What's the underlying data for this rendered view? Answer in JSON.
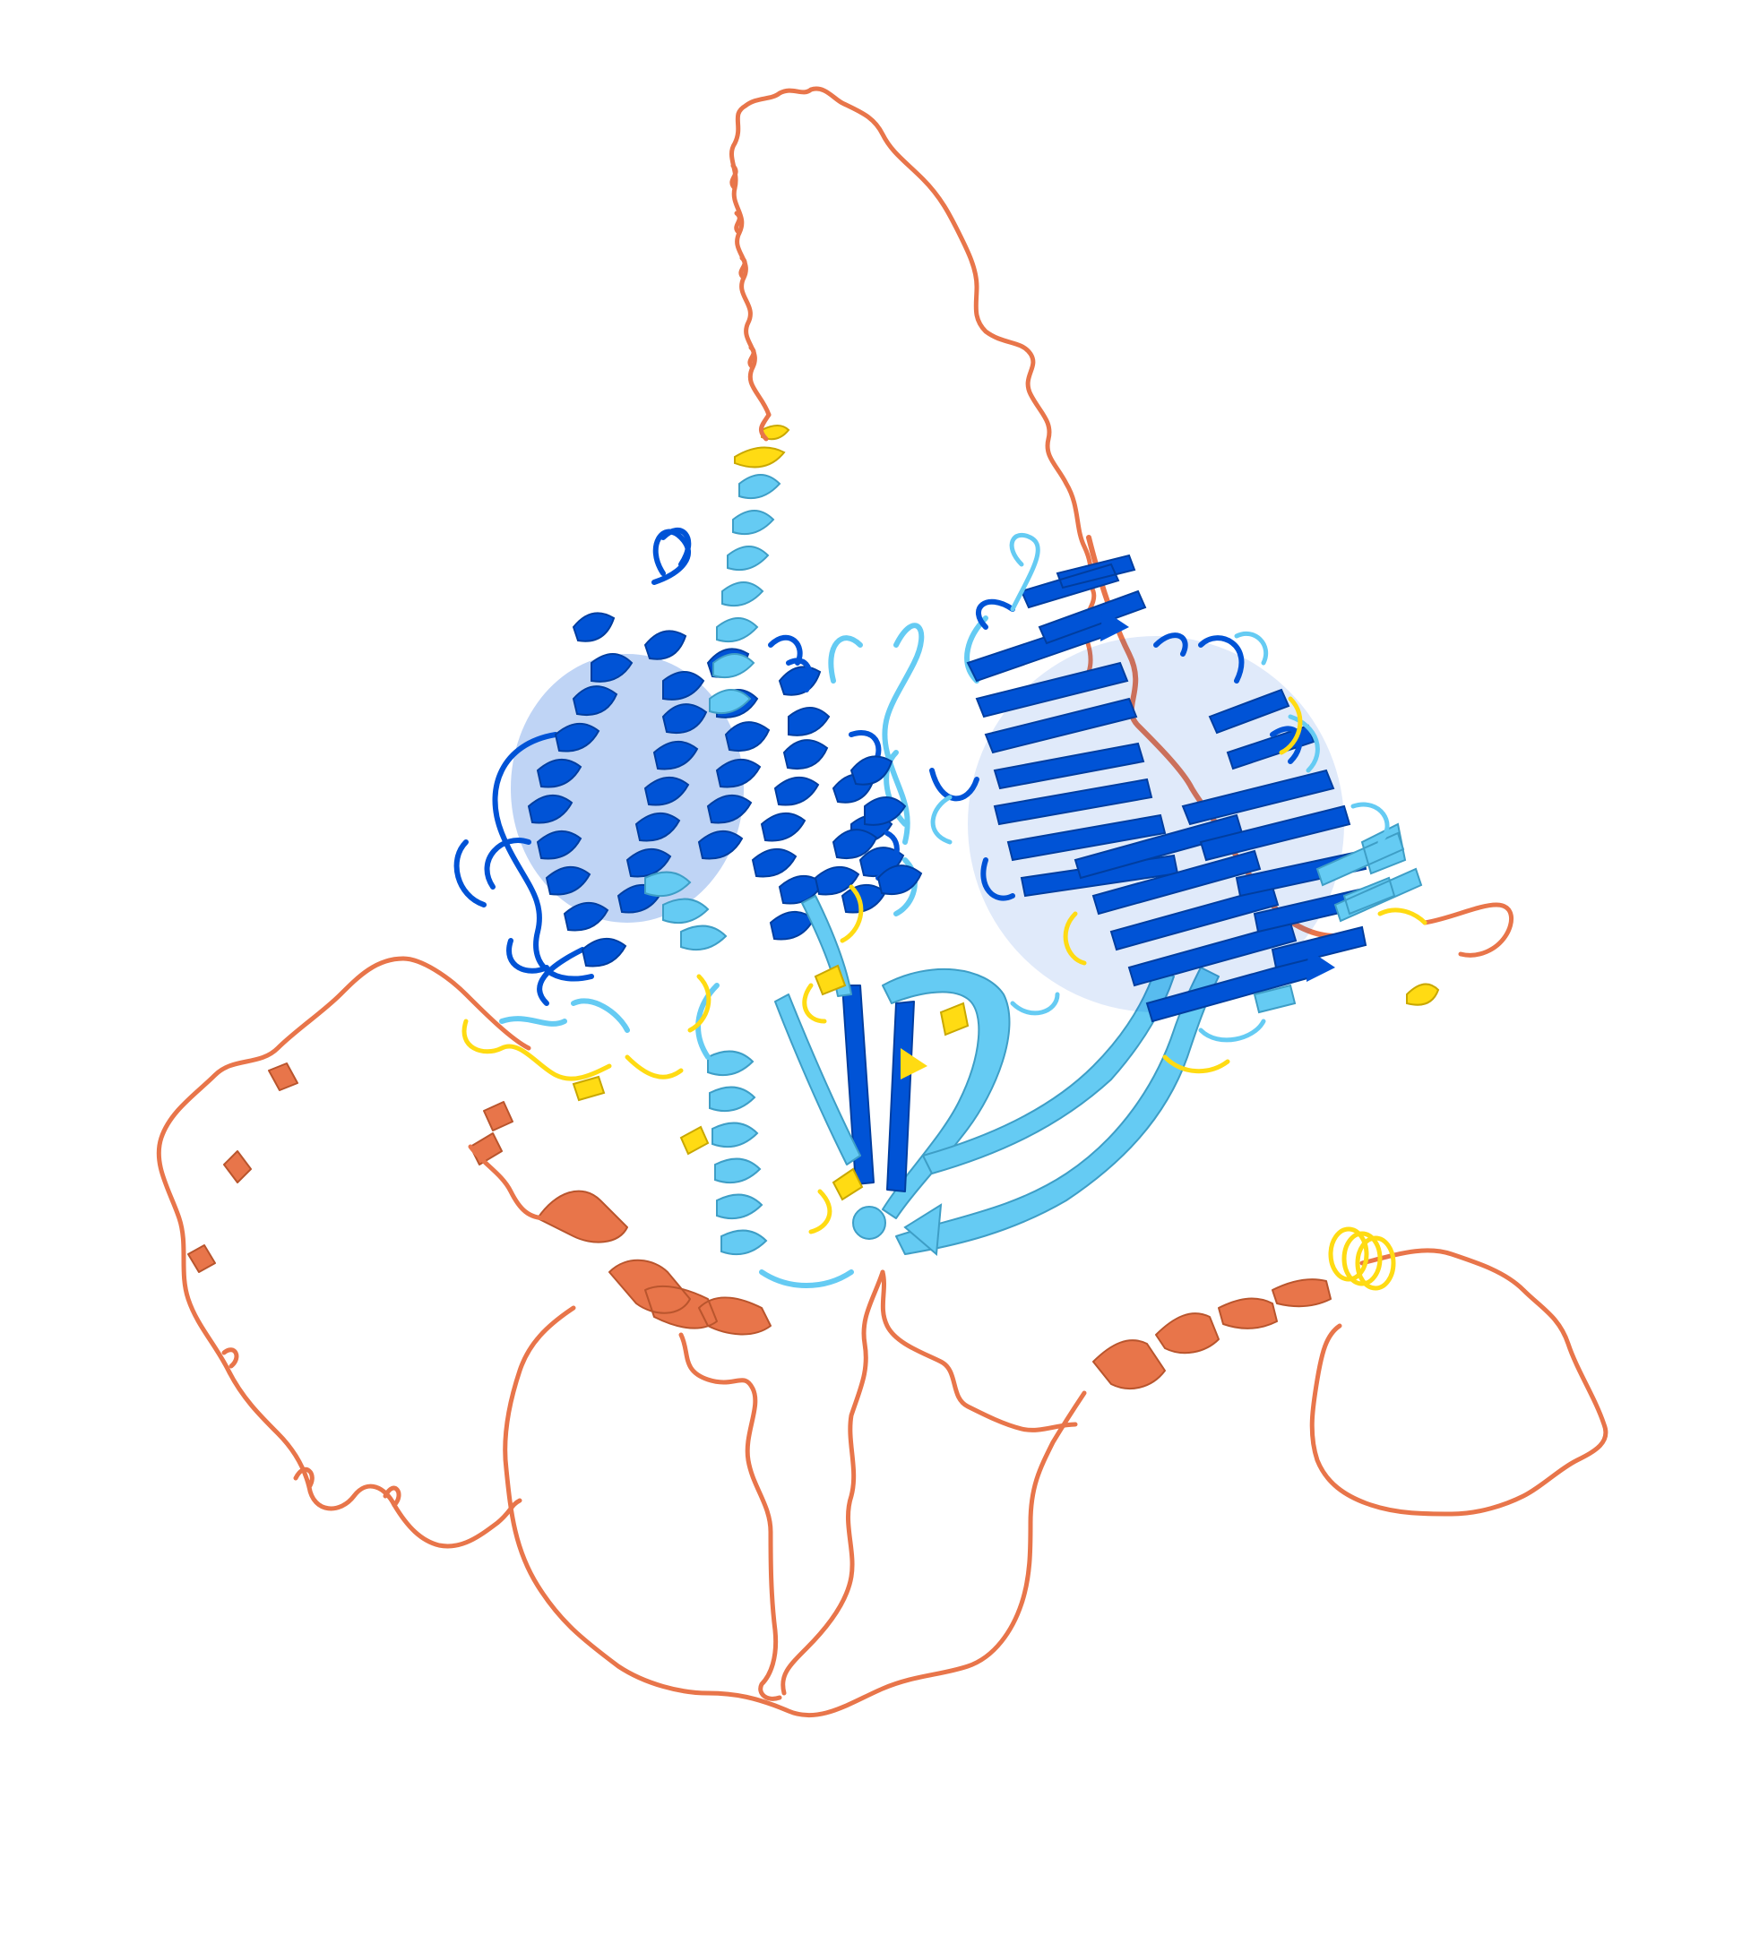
{
  "image": {
    "kind": "protein-structure-cartoon",
    "background": "#ffffff"
  },
  "confidence_palette": {
    "very_high": "#0053d6",
    "confident": "#65cbf3",
    "low": "#ffdb13",
    "very_low": "#ff7d45",
    "coil_very_low": "#e8754a"
  }
}
